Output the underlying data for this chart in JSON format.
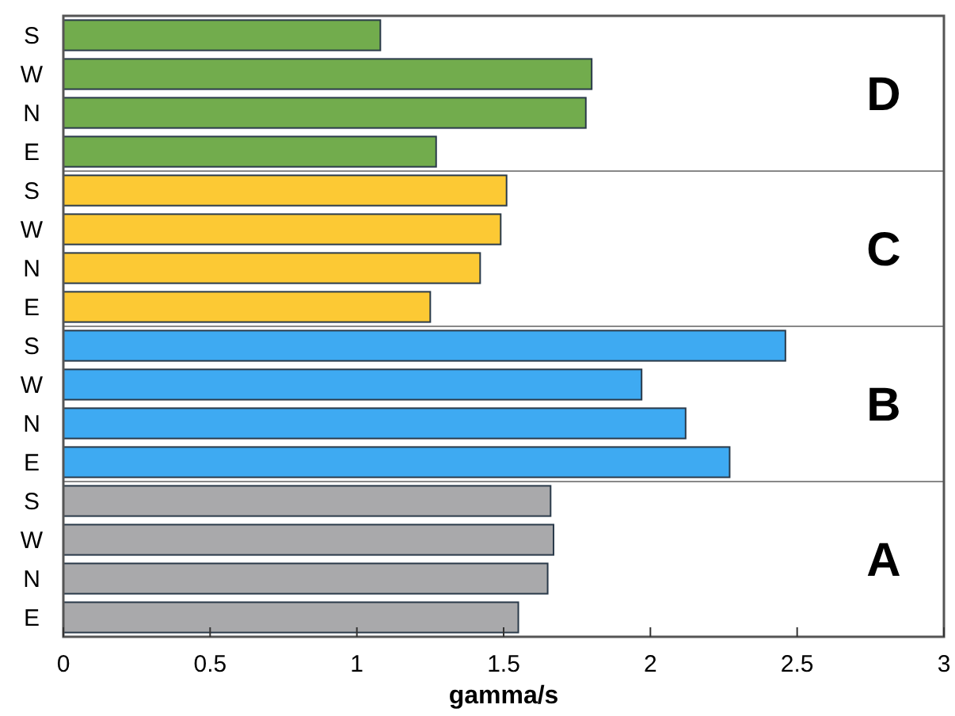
{
  "chart_data": {
    "type": "bar",
    "orientation": "horizontal",
    "xlabel": "gamma/s",
    "categories": [
      "S",
      "W",
      "N",
      "E",
      "S",
      "W",
      "N",
      "E",
      "S",
      "W",
      "N",
      "E",
      "S",
      "W",
      "N",
      "E"
    ],
    "values": [
      1.08,
      1.8,
      1.78,
      1.27,
      1.51,
      1.49,
      1.42,
      1.25,
      2.46,
      1.97,
      2.12,
      2.27,
      1.66,
      1.67,
      1.65,
      1.55
    ],
    "colors": [
      "#72ac4d",
      "#72ac4d",
      "#72ac4d",
      "#72ac4d",
      "#fcc934",
      "#fcc934",
      "#fcc934",
      "#fcc934",
      "#3eaaf2",
      "#3eaaf2",
      "#3eaaf2",
      "#3eaaf2",
      "#a9a9ab",
      "#a9a9ab",
      "#a9a9ab",
      "#a9a9ab"
    ],
    "annotations": [
      "D",
      "C",
      "B",
      "A"
    ],
    "xlim": [
      0,
      3
    ],
    "xticks": [
      0,
      0.5,
      1,
      1.5,
      2,
      2.5,
      3
    ],
    "grid": false
  }
}
